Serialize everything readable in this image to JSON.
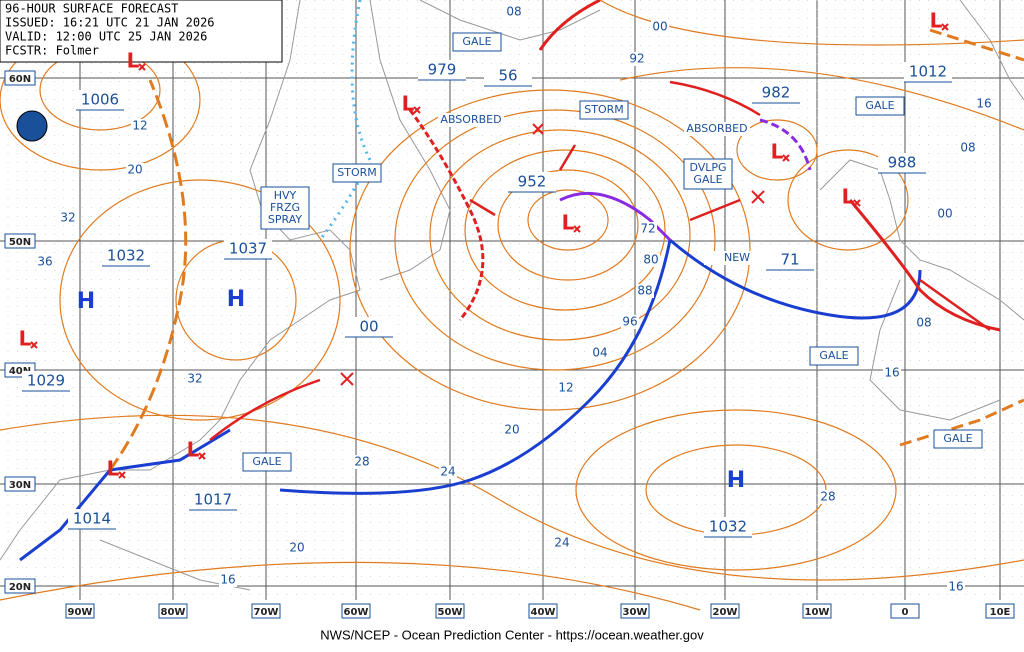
{
  "header": [
    "96-HOUR SURFACE FORECAST",
    "ISSUED: 16:21 UTC 21 JAN 2026",
    "VALID: 12:00 UTC 25 JAN 2026",
    "FCSTR: Folmer"
  ],
  "footer": "NWS/NCEP - Ocean Prediction Center - https://ocean.weather.gov",
  "lat_labels": [
    "60N",
    "50N",
    "40N",
    "30N",
    "20N"
  ],
  "lon_labels": [
    "90W",
    "80W",
    "70W",
    "60W",
    "50W",
    "40W",
    "30W",
    "20W",
    "10W",
    "0",
    "10E"
  ],
  "pressure_labels": [
    "1006",
    "979",
    "56",
    "982",
    "1012",
    "988",
    "952",
    "1037",
    "1032",
    "00",
    "71",
    "1029",
    "1017",
    "1014",
    "1032"
  ],
  "isobar_labels": [
    "08",
    "00",
    "92",
    "12",
    "20",
    "32",
    "36",
    "16",
    "08",
    "00",
    "72",
    "80",
    "88",
    "96",
    "04",
    "12",
    "20",
    "24",
    "28",
    "32",
    "20",
    "16",
    "24",
    "28",
    "16",
    "08",
    "16"
  ],
  "highs": [
    "H",
    "H",
    "H"
  ],
  "lows": [
    "L",
    "L",
    "L",
    "L",
    "L",
    "L",
    "L",
    "L",
    "L"
  ],
  "boxes": [
    [
      "GALE"
    ],
    [
      "STORM"
    ],
    [
      "STORM"
    ],
    [
      "HVY",
      "FRZG",
      "SPRAY"
    ],
    [
      "DVLPG",
      "GALE"
    ],
    [
      "GALE"
    ],
    [
      "GALE"
    ],
    [
      "GALE"
    ],
    [
      "GALE"
    ]
  ],
  "annotations": [
    "ABSORBED",
    "ABSORBED",
    "NEW"
  ]
}
